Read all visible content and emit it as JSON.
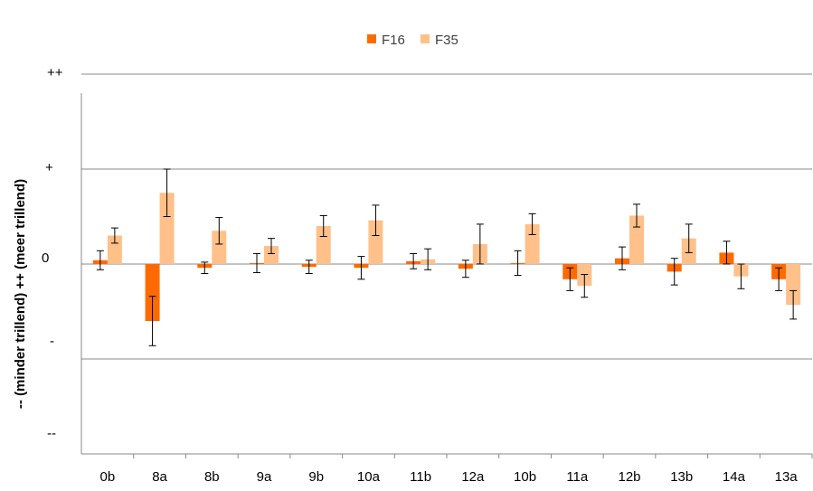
{
  "chart_data": {
    "type": "bar",
    "title": "",
    "xlabel": "",
    "ylabel": "-- (minder trillend)  ++ (meer trillend)",
    "categories": [
      "0b",
      "8a",
      "8b",
      "9a",
      "9b",
      "10a",
      "11b",
      "12a",
      "10b",
      "11a",
      "12b",
      "13b",
      "14a",
      "13a"
    ],
    "y_tick_labels": [
      "++",
      "+",
      "0",
      "-",
      "--"
    ],
    "ylim": [
      -2,
      2
    ],
    "grid": true,
    "legend_position": "top",
    "series": [
      {
        "name": "F16",
        "color": "#FF6A00",
        "values": [
          0.04,
          -0.6,
          -0.04,
          0.01,
          -0.03,
          -0.04,
          0.03,
          -0.05,
          0.01,
          -0.16,
          0.06,
          -0.08,
          0.12,
          -0.16
        ],
        "errors": [
          0.1,
          0.26,
          0.06,
          0.1,
          0.07,
          0.12,
          0.08,
          0.09,
          0.13,
          0.12,
          0.12,
          0.14,
          0.12,
          0.12
        ]
      },
      {
        "name": "F35",
        "color": "#FFC08A",
        "values": [
          0.3,
          0.75,
          0.35,
          0.19,
          0.4,
          0.46,
          0.05,
          0.21,
          0.42,
          -0.23,
          0.51,
          0.27,
          -0.13,
          -0.43
        ],
        "errors": [
          0.08,
          0.25,
          0.14,
          0.08,
          0.11,
          0.16,
          0.11,
          0.21,
          0.11,
          0.12,
          0.12,
          0.15,
          0.13,
          0.15
        ]
      }
    ]
  }
}
